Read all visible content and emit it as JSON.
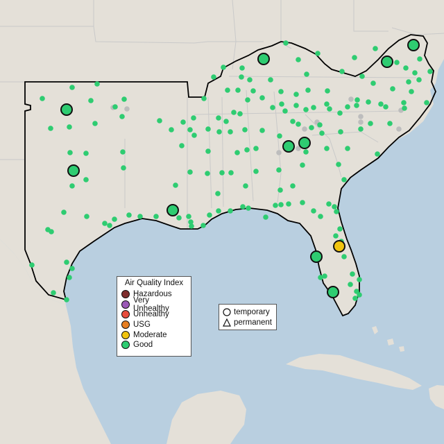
{
  "colors": {
    "ocean": "#b9cfe0",
    "land": "#e4e0d8",
    "state_border": "#c9c9c9",
    "region_outline": "#000000",
    "marker_stroke": "#111111"
  },
  "legend": {
    "title": "Air Quality Index",
    "items": [
      {
        "label": "Hazardous",
        "color": "#7e2d2d"
      },
      {
        "label": "Very Unhealthy",
        "color": "#9b59b6"
      },
      {
        "label": "Unhealthy",
        "color": "#e74c3c"
      },
      {
        "label": "USG",
        "color": "#e67e22"
      },
      {
        "label": "Moderate",
        "color": "#f1c40f"
      },
      {
        "label": "Good",
        "color": "#2ecc71"
      }
    ]
  },
  "monitor_types": {
    "temporary": "temporary",
    "permanent": "permanent"
  },
  "markers": {
    "large_circles": [
      {
        "category": "Good"
      },
      {
        "category": "Good"
      },
      {
        "category": "Good"
      },
      {
        "category": "Good"
      },
      {
        "category": "Good"
      },
      {
        "category": "Good"
      },
      {
        "category": "Good"
      },
      {
        "category": "Good"
      },
      {
        "category": "Good"
      },
      {
        "category": "Good"
      },
      {
        "category": "Moderate"
      }
    ],
    "small_dot_color": "#2ecc71",
    "inactive_dot_color": "#bdbdbd"
  }
}
